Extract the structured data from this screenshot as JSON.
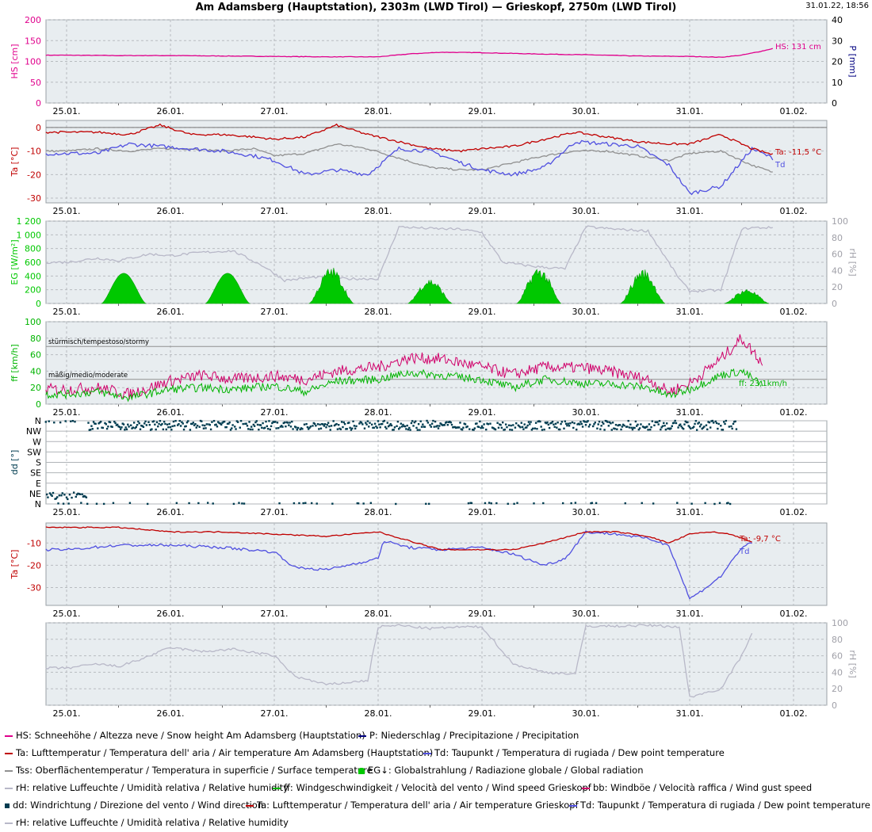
{
  "title": "Am Adamsberg (Hauptstation), 2303m (LWD Tirol) — Grieskopf, 2750m (LWD Tirol)",
  "timestamp": "31.01.22, 18:56",
  "colors": {
    "hs": "#e0008c",
    "precip": "#000080",
    "ta": "#c00000",
    "td": "#5050e0",
    "tss": "#909090",
    "eg": "#00c800",
    "rh": "#b8b8c8",
    "ff": "#00b400",
    "bb": "#d0006a",
    "dd": "#003c50"
  },
  "legend": [
    [
      {
        "swatch": "line",
        "color": "#e0008c",
        "text": "HS: Schneehöhe / Altezza neve / Snow height  Am Adamsberg (Hauptstation)"
      },
      {
        "swatch": "line",
        "color": "#000080",
        "text": "P: Niederschlag / Precipitazione / Precipitation"
      }
    ],
    [
      {
        "swatch": "line",
        "color": "#c00000",
        "text": "Ta: Lufttemperatur / Temperatura dell' aria / Air temperature  Am Adamsberg (Hauptstation)"
      },
      {
        "swatch": "line",
        "color": "#5050e0",
        "text": "Td: Taupunkt / Temperatura di rugiada / Dew point temperature"
      }
    ],
    [
      {
        "swatch": "line",
        "color": "#909090",
        "text": "Tss: Oberflächentemperatur / Temperatura in superficie / Surface temperature"
      },
      {
        "swatch": "mount",
        "color": "#00c800",
        "text": "EG↓: Globalstrahlung / Radiazione globale / Global radiation"
      }
    ],
    [
      {
        "swatch": "line",
        "color": "#b8b8c8",
        "text": "rH: relative Luffeuchte / Umidità relativa / Relative humidity"
      },
      {
        "swatch": "line",
        "color": "#00b400",
        "text": "ff: Windgeschwindigkeit / Velocità del vento / Wind speed  Grieskopf"
      },
      {
        "swatch": "line",
        "color": "#d0006a",
        "text": "bb: Windböe / Velocità raffica / Wind gust speed"
      }
    ],
    [
      {
        "swatch": "square",
        "color": "#003c50",
        "text": "dd: Windrichtung / Direzione del vento / Wind direction"
      },
      {
        "swatch": "line",
        "color": "#c00000",
        "text": "Ta: Lufttemperatur / Temperatura dell' aria / Air temperature  Grieskopf"
      },
      {
        "swatch": "line",
        "color": "#5050e0",
        "text": "Td: Taupunkt / Temperatura di rugiada / Dew point temperature"
      }
    ],
    [
      {
        "swatch": "line",
        "color": "#b8b8c8",
        "text": "rH: relative Luffeuchte / Umidità relativa / Relative humidity"
      }
    ]
  ],
  "chart_data": [
    {
      "type": "line",
      "station": "Am Adamsberg (Hauptstation)",
      "x_ticks": [
        "25.01.",
        "26.01.",
        "27.01.",
        "28.01.",
        "29.01.",
        "30.01.",
        "31.01.",
        "01.02."
      ],
      "ylabel": "HS [cm]",
      "ylim": [
        0,
        200
      ],
      "yticks": [
        "0",
        "50",
        "100",
        "150",
        "200"
      ],
      "y2label": "P [mm]",
      "y2lim": [
        0,
        40
      ],
      "y2ticks": [
        "0",
        "10",
        "20",
        "30",
        "40"
      ],
      "series": [
        {
          "name": "HS",
          "x": [
            0,
            0.5,
            1,
            1.5,
            2,
            2.5,
            3,
            3.3,
            3.6,
            4,
            4.5,
            5,
            5.5,
            6,
            6.3,
            6.5,
            6.7,
            6.8
          ],
          "values": [
            115,
            114,
            114,
            113,
            112,
            111,
            111,
            118,
            122,
            121,
            118,
            116,
            113,
            112,
            110,
            115,
            125,
            131
          ]
        }
      ],
      "end_label": "HS: 131 cm"
    },
    {
      "type": "line",
      "station": "Am Adamsberg (Hauptstation)",
      "ylabel": "Ta [°C]",
      "ylim": [
        -32,
        3
      ],
      "yticks": [
        "-30",
        "-20",
        "-10",
        "0"
      ],
      "series": [
        {
          "name": "Ta",
          "x": [
            0,
            0.3,
            0.6,
            0.9,
            1.2,
            1.5,
            1.8,
            2,
            2.3,
            2.6,
            2.9,
            3.2,
            3.5,
            3.8,
            4,
            4.3,
            4.6,
            4.9,
            5.2,
            5.5,
            5.8,
            6,
            6.3,
            6.6,
            6.8
          ],
          "values": [
            -2,
            -2,
            -3,
            1,
            -3,
            -3,
            -4,
            -5,
            -4,
            1,
            -3,
            -6,
            -9,
            -10,
            -9,
            -8,
            -5,
            -2,
            -4,
            -6,
            -7,
            -7,
            -3,
            -9,
            -11.5
          ]
        },
        {
          "name": "Td",
          "x": [
            0,
            0.3,
            0.6,
            0.9,
            1.2,
            1.5,
            1.8,
            2,
            2.3,
            2.6,
            2.9,
            3.2,
            3.5,
            3.8,
            4,
            4.3,
            4.6,
            4.9,
            5.2,
            5.5,
            5.8,
            6,
            6.3,
            6.6,
            6.8
          ],
          "values": [
            -11,
            -11,
            -7,
            -8,
            -9,
            -10,
            -12,
            -14,
            -20,
            -18,
            -20,
            -9,
            -10,
            -15,
            -18,
            -20,
            -17,
            -6,
            -7,
            -8,
            -16,
            -28,
            -25,
            -9,
            -13
          ]
        },
        {
          "name": "Tss",
          "x": [
            0,
            0.3,
            0.6,
            0.9,
            1.2,
            1.5,
            1.8,
            2,
            2.3,
            2.6,
            2.9,
            3.2,
            3.5,
            3.8,
            4,
            4.3,
            4.6,
            4.9,
            5.2,
            5.5,
            5.8,
            6,
            6.3,
            6.6,
            6.8
          ],
          "values": [
            -10,
            -9,
            -10,
            -9,
            -9,
            -10,
            -9,
            -12,
            -11,
            -7,
            -9,
            -13,
            -17,
            -18,
            -18,
            -15,
            -12,
            -10,
            -10,
            -12,
            -14,
            -11,
            -10,
            -16,
            -19
          ]
        }
      ],
      "end_labels": [
        "Ta: -11,5 °C",
        "Td"
      ]
    },
    {
      "type": "area",
      "station": "Am Adamsberg (Hauptstation)",
      "ylabel": "EG [W/m²]",
      "ylim": [
        0,
        1200
      ],
      "yticks": [
        "0",
        "200",
        "400",
        "600",
        "800",
        "1 000",
        "1 200"
      ],
      "y2label": "rH [%]",
      "y2lim": [
        0,
        100
      ],
      "y2ticks": [
        "0",
        "20",
        "40",
        "60",
        "80",
        "100"
      ],
      "series": [
        {
          "name": "EG↓",
          "peaks": [
            {
              "day": 0.55,
              "value": 440
            },
            {
              "day": 1.55,
              "value": 440
            },
            {
              "day": 2.55,
              "value": 450
            },
            {
              "day": 3.5,
              "value": 310
            },
            {
              "day": 4.55,
              "value": 450
            },
            {
              "day": 5.55,
              "value": 430
            },
            {
              "day": 6.55,
              "value": 180
            }
          ]
        },
        {
          "name": "rH",
          "x": [
            0,
            0.3,
            0.5,
            0.8,
            1,
            1.3,
            1.6,
            1.9,
            2.1,
            2.4,
            2.7,
            3,
            3.2,
            3.5,
            3.8,
            4,
            4.2,
            4.5,
            4.8,
            5,
            5.3,
            5.6,
            5.9,
            6,
            6.3,
            6.5,
            6.6,
            6.8
          ],
          "values": [
            50,
            55,
            52,
            60,
            58,
            62,
            64,
            45,
            28,
            32,
            30,
            30,
            93,
            91,
            90,
            86,
            50,
            45,
            42,
            93,
            90,
            88,
            30,
            15,
            16,
            90,
            92,
            92
          ]
        }
      ]
    },
    {
      "type": "line",
      "station": "Grieskopf",
      "ylabel": "ff [km/h]",
      "ylim": [
        0,
        100
      ],
      "yticks": [
        "0",
        "20",
        "40",
        "60",
        "80",
        "100"
      ],
      "reference_lines": [
        {
          "value": 70,
          "label": "stürmisch/tempestoso/stormy"
        },
        {
          "value": 30,
          "label": "mäßig/medio/moderate"
        }
      ],
      "series": [
        {
          "name": "ff",
          "x": [
            0,
            0.3,
            0.6,
            1,
            1.3,
            1.6,
            2,
            2.3,
            2.6,
            3,
            3.3,
            3.6,
            4,
            4.3,
            4.6,
            5,
            5.3,
            5.6,
            5.8,
            6,
            6.3,
            6.5,
            6.7
          ],
          "values": [
            12,
            15,
            8,
            18,
            20,
            18,
            22,
            15,
            28,
            30,
            38,
            35,
            30,
            20,
            30,
            25,
            24,
            20,
            10,
            18,
            35,
            40,
            23.1
          ]
        },
        {
          "name": "bb",
          "x": [
            0,
            0.3,
            0.6,
            1,
            1.3,
            1.6,
            2,
            2.3,
            2.6,
            3,
            3.3,
            3.6,
            4,
            4.3,
            4.6,
            5,
            5.3,
            5.6,
            5.8,
            6,
            6.3,
            6.5,
            6.7
          ],
          "values": [
            18,
            20,
            12,
            28,
            35,
            30,
            34,
            30,
            40,
            45,
            56,
            55,
            45,
            36,
            45,
            44,
            38,
            30,
            15,
            25,
            55,
            80,
            50
          ]
        }
      ],
      "end_label": "ff: 23,1km/h"
    },
    {
      "type": "scatter",
      "station": "Grieskopf",
      "ylabel": "dd [°]",
      "yticks": [
        "N",
        "NE",
        "E",
        "SE",
        "S",
        "SW",
        "W",
        "NW",
        "N"
      ],
      "series": [
        {
          "name": "dd",
          "note": "mostly NW-N",
          "values": []
        }
      ]
    },
    {
      "type": "line",
      "station": "Grieskopf",
      "ylabel": "Ta [°C]",
      "ylim": [
        -38,
        -1
      ],
      "yticks": [
        "-30",
        "-20",
        "-10"
      ],
      "series": [
        {
          "name": "Ta",
          "x": [
            0,
            0.5,
            1,
            1.5,
            2,
            2.5,
            3,
            3.3,
            3.6,
            4,
            4.3,
            4.6,
            5,
            5.3,
            5.6,
            5.8,
            6,
            6.2,
            6.4,
            6.6
          ],
          "values": [
            -3,
            -3,
            -5,
            -5,
            -6,
            -7,
            -5,
            -9,
            -13,
            -13,
            -13,
            -10,
            -5,
            -5,
            -7,
            -10,
            -6,
            -5,
            -6,
            -9.7
          ]
        },
        {
          "name": "Td",
          "x": [
            0,
            0.5,
            1,
            1.5,
            2,
            2.2,
            2.5,
            3,
            3.05,
            3.3,
            3.6,
            4,
            4.3,
            4.6,
            4.8,
            5,
            5.3,
            5.6,
            5.8,
            6,
            6.1,
            6.3,
            6.5,
            6.6
          ],
          "values": [
            -13,
            -11,
            -11,
            -12,
            -14,
            -21,
            -22,
            -17,
            -9,
            -12,
            -13,
            -12,
            -15,
            -20,
            -17,
            -5,
            -6,
            -8,
            -11,
            -35,
            -32,
            -25,
            -12,
            -10
          ]
        }
      ],
      "end_labels": [
        "Ta: -9,7 °C",
        "Td"
      ]
    },
    {
      "type": "line",
      "station": "Grieskopf",
      "y2label": "rH [%]",
      "y2lim": [
        0,
        100
      ],
      "y2ticks": [
        "0",
        "20",
        "40",
        "60",
        "80",
        "100"
      ],
      "series": [
        {
          "name": "rH",
          "x": [
            0,
            0.3,
            0.5,
            0.7,
            1,
            1.3,
            1.6,
            2,
            2.2,
            2.5,
            2.9,
            3,
            3.2,
            3.5,
            3.8,
            4,
            4.3,
            4.6,
            4.9,
            5,
            5.3,
            5.6,
            5.9,
            6,
            6.3,
            6.5,
            6.6
          ],
          "values": [
            45,
            50,
            47,
            55,
            70,
            65,
            68,
            60,
            35,
            25,
            30,
            95,
            97,
            93,
            95,
            95,
            50,
            40,
            38,
            96,
            96,
            97,
            95,
            10,
            20,
            60,
            88
          ]
        }
      ]
    }
  ]
}
